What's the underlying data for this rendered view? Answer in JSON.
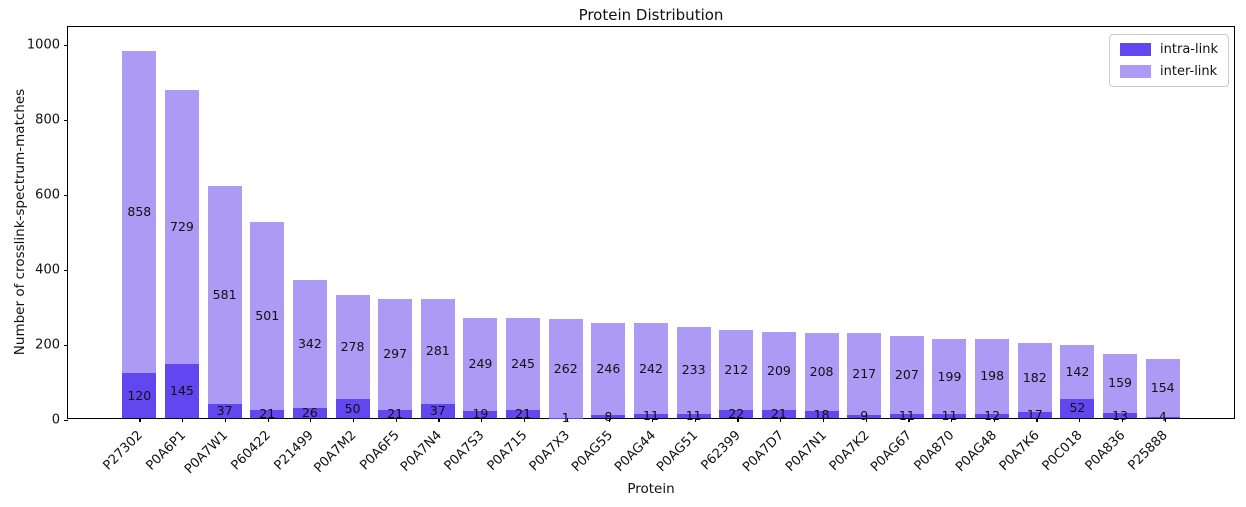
{
  "chart_data": {
    "type": "bar",
    "stacked": true,
    "title": "Protein Distribution",
    "xlabel": "Protein",
    "ylabel": "Number of crosslink-spectrum-matches",
    "ylim": [
      0,
      1048
    ],
    "yticks": [
      0,
      200,
      400,
      600,
      800,
      1000
    ],
    "grid": false,
    "bar_value_labels": true,
    "legend_position": "upper right",
    "categories": [
      "P27302",
      "P0A6P1",
      "P0A7W1",
      "P60422",
      "P21499",
      "P0A7M2",
      "P0A6F5",
      "P0A7N4",
      "P0A7S3",
      "P0A715",
      "P0A7X3",
      "P0AG55",
      "P0AG44",
      "P0AG51",
      "P62399",
      "P0A7D7",
      "P0A7N1",
      "P0A7K2",
      "P0AG67",
      "P0A870",
      "P0AG48",
      "P0A7K6",
      "P0C018",
      "P0A836",
      "P25888"
    ],
    "series": [
      {
        "name": "intra-link",
        "color": "#6246f0",
        "values": [
          120,
          145,
          37,
          21,
          26,
          50,
          21,
          37,
          19,
          21,
          1,
          8,
          11,
          11,
          22,
          21,
          18,
          9,
          11,
          11,
          12,
          17,
          52,
          13,
          4
        ]
      },
      {
        "name": "inter-link",
        "color": "#ab9bf5",
        "values": [
          858,
          729,
          581,
          501,
          342,
          278,
          297,
          281,
          249,
          245,
          262,
          246,
          242,
          233,
          212,
          209,
          208,
          217,
          207,
          199,
          198,
          182,
          142,
          159,
          154
        ]
      }
    ]
  }
}
